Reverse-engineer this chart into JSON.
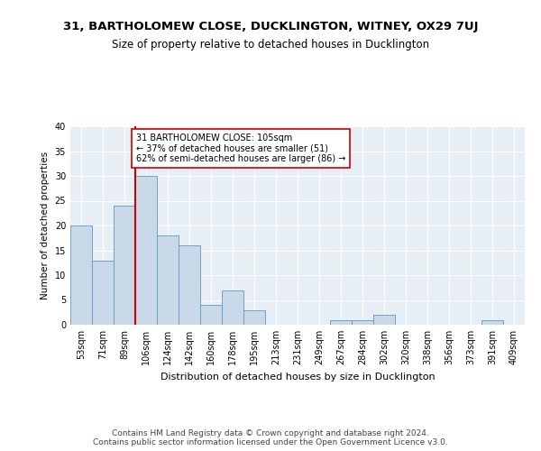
{
  "title1": "31, BARTHOLOMEW CLOSE, DUCKLINGTON, WITNEY, OX29 7UJ",
  "title2": "Size of property relative to detached houses in Ducklington",
  "xlabel": "Distribution of detached houses by size in Ducklington",
  "ylabel": "Number of detached properties",
  "categories": [
    "53sqm",
    "71sqm",
    "89sqm",
    "106sqm",
    "124sqm",
    "142sqm",
    "160sqm",
    "178sqm",
    "195sqm",
    "213sqm",
    "231sqm",
    "249sqm",
    "267sqm",
    "284sqm",
    "302sqm",
    "320sqm",
    "338sqm",
    "356sqm",
    "373sqm",
    "391sqm",
    "409sqm"
  ],
  "values": [
    20,
    13,
    24,
    30,
    18,
    16,
    4,
    7,
    3,
    0,
    0,
    0,
    1,
    1,
    2,
    0,
    0,
    0,
    0,
    1,
    0
  ],
  "bar_color": "#c9d9e8",
  "bar_edge_color": "#5b9ac4",
  "vline_color": "#cc0000",
  "vline_x_index": 2.5,
  "annotation_text": "31 BARTHOLOMEW CLOSE: 105sqm\n← 37% of detached houses are smaller (51)\n62% of semi-detached houses are larger (86) →",
  "annotation_box_color": "#ffffff",
  "annotation_box_edge": "#cc0000",
  "ylim": [
    0,
    40
  ],
  "yticks": [
    0,
    5,
    10,
    15,
    20,
    25,
    30,
    35,
    40
  ],
  "footer": "Contains HM Land Registry data © Crown copyright and database right 2024.\nContains public sector information licensed under the Open Government Licence v3.0.",
  "background_color": "#e8eef5",
  "title1_fontsize": 9.5,
  "title2_fontsize": 8.5,
  "xlabel_fontsize": 8,
  "ylabel_fontsize": 7.5,
  "tick_fontsize": 7,
  "annotation_fontsize": 7,
  "footer_fontsize": 6.5
}
